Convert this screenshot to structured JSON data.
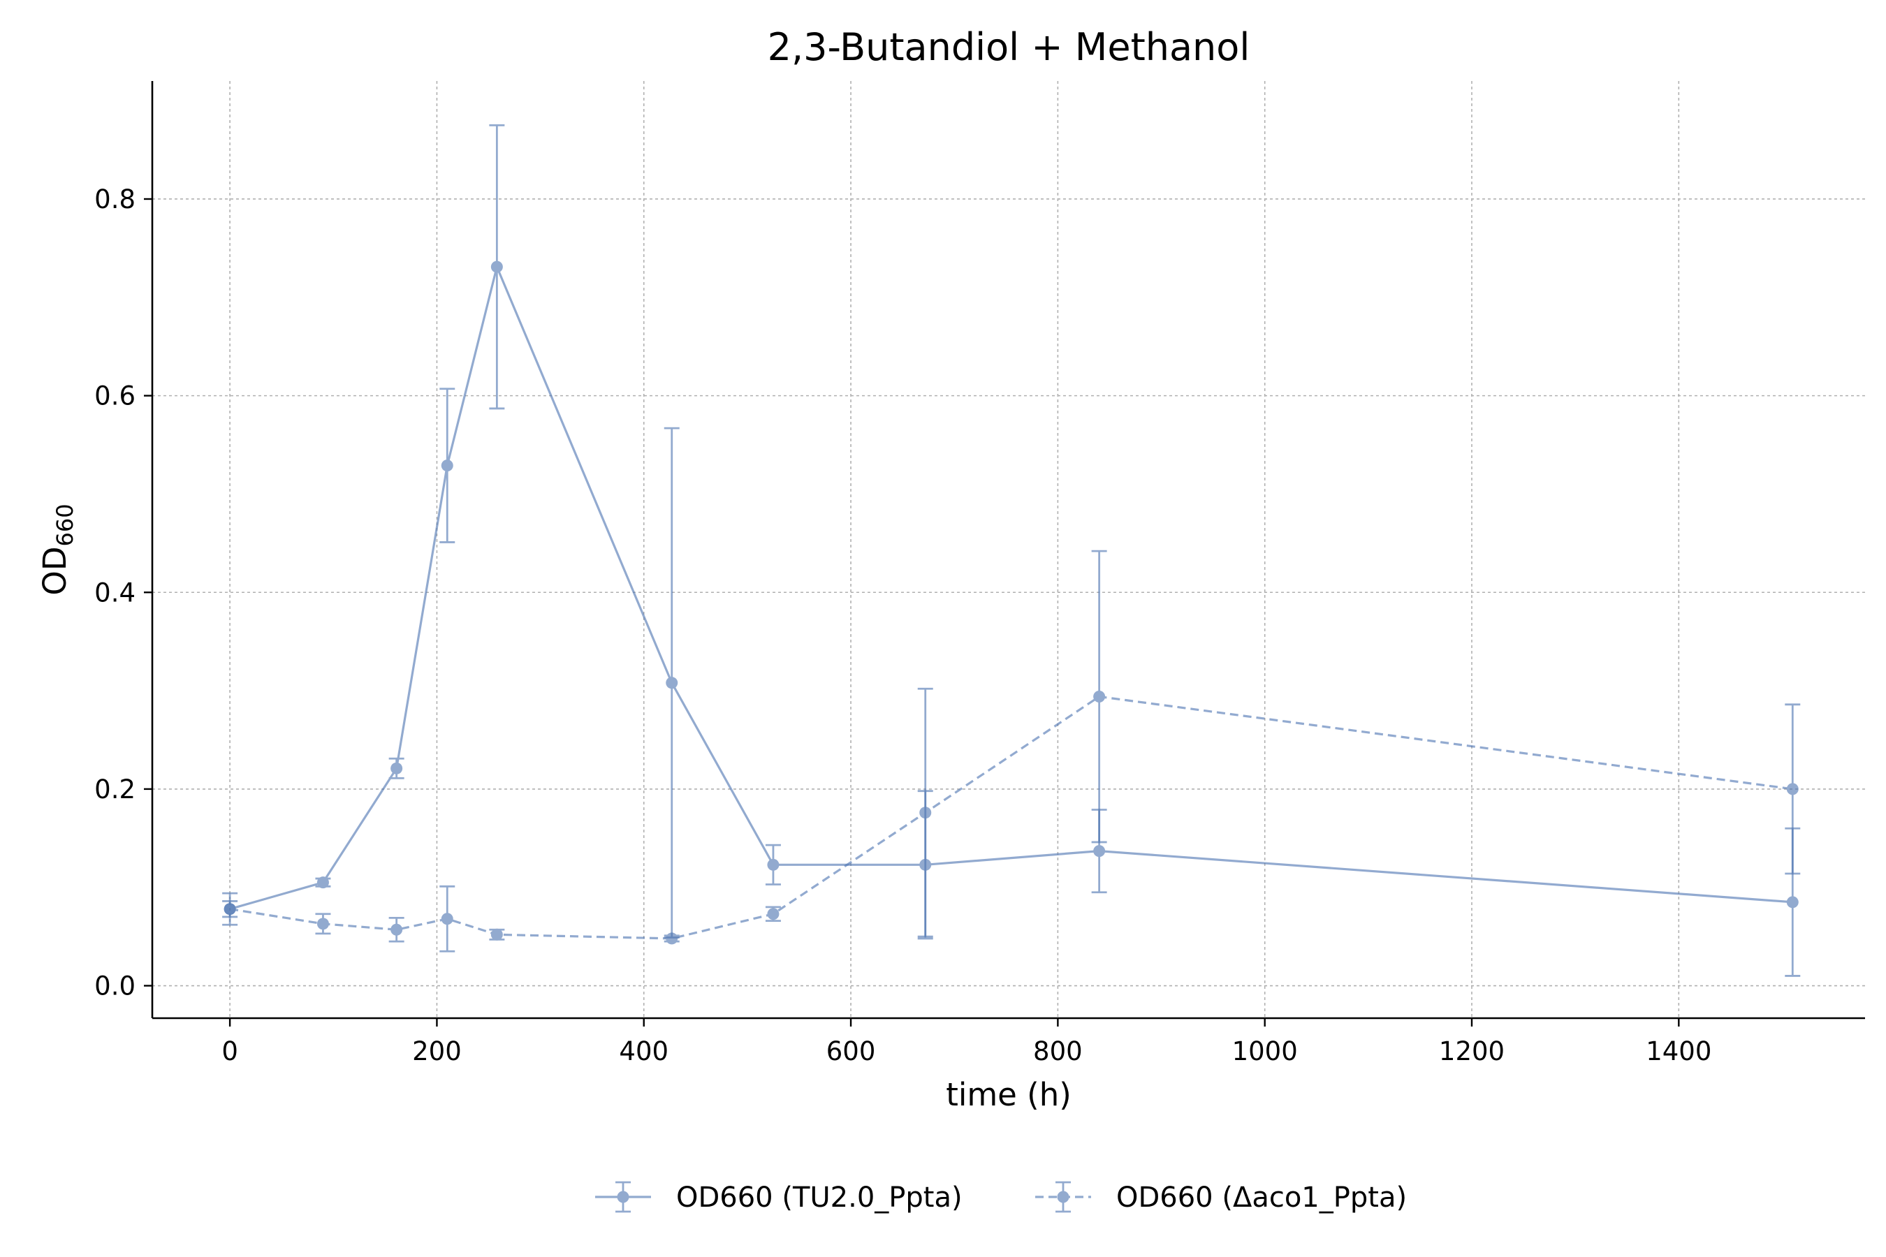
{
  "chart_data": {
    "type": "line",
    "title": "2,3-Butandiol + Methanol",
    "xlabel": "time (h)",
    "ylabel": "OD",
    "ylabel_subscript": "660",
    "xlim": [
      -75,
      1580
    ],
    "ylim": [
      -0.033,
      0.92
    ],
    "xticks": [
      0,
      200,
      400,
      600,
      800,
      1000,
      1200,
      1400
    ],
    "yticks": [
      0.0,
      0.2,
      0.4,
      0.6,
      0.8
    ],
    "xtick_labels": [
      "0",
      "200",
      "400",
      "600",
      "800",
      "1000",
      "1200",
      "1400"
    ],
    "ytick_labels": [
      "0.0",
      "0.2",
      "0.4",
      "0.6",
      "0.8"
    ],
    "grid": true,
    "legend_position": "bottom-center",
    "color": "#4a72b0",
    "series": [
      {
        "name": "OD660 (TU2.0_Ppta)",
        "line_style": "solid",
        "x": [
          0,
          90,
          161,
          210,
          258,
          427,
          525,
          672,
          840,
          1510
        ],
        "y": [
          0.078,
          0.105,
          0.221,
          0.529,
          0.731,
          0.308,
          0.123,
          0.123,
          0.137,
          0.085
        ],
        "err": [
          0.016,
          0.004,
          0.01,
          0.078,
          0.144,
          0.259,
          0.02,
          0.075,
          0.042,
          0.075
        ]
      },
      {
        "name": "OD660 (Δaco1_Ppta)",
        "line_style": "dashed",
        "x": [
          0,
          90,
          161,
          210,
          258,
          427,
          525,
          672,
          840,
          1510
        ],
        "y": [
          0.078,
          0.063,
          0.057,
          0.068,
          0.052,
          0.048,
          0.073,
          0.176,
          0.294,
          0.2
        ],
        "err": [
          0.008,
          0.01,
          0.012,
          0.033,
          0.005,
          0.003,
          0.007,
          0.126,
          0.148,
          0.086
        ]
      }
    ]
  }
}
